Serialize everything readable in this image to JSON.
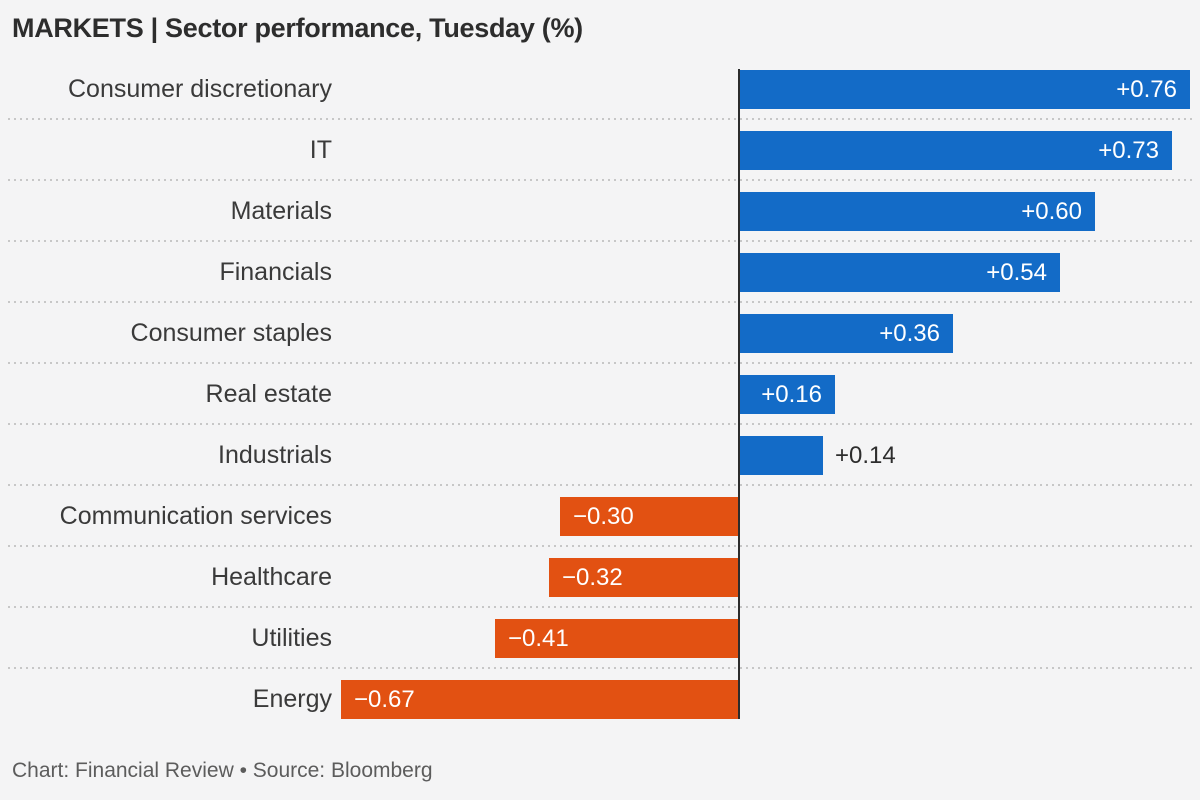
{
  "chart_data": {
    "type": "bar",
    "orientation": "horizontal",
    "title": "MARKETS | Sector performance, Tuesday (%)",
    "source_note": "Chart: Financial Review • Source: Bloomberg",
    "categories": [
      "Consumer discretionary",
      "IT",
      "Materials",
      "Financials",
      "Consumer staples",
      "Real estate",
      "Industrials",
      "Communication services",
      "Healthcare",
      "Utilities",
      "Energy"
    ],
    "values": [
      0.76,
      0.73,
      0.6,
      0.54,
      0.36,
      0.16,
      0.14,
      -0.3,
      -0.32,
      -0.41,
      -0.67
    ],
    "display_values": [
      "+0.76",
      "+0.73",
      "+0.60",
      "+0.54",
      "+0.36",
      "+0.16",
      "+0.14",
      "−0.30",
      "−0.32",
      "−0.41",
      "−0.67"
    ],
    "value_label_positions": [
      "inside",
      "inside",
      "inside",
      "inside",
      "inside",
      "inside",
      "outside",
      "inside",
      "inside",
      "inside",
      "inside"
    ],
    "xlabel": "",
    "ylabel": "",
    "xlim": [
      -0.7,
      0.78
    ],
    "baseline": 0,
    "grid": "dotted-row-separators",
    "legend": "none",
    "colors": {
      "positive_bar": "#136bc7",
      "negative_bar": "#e25112",
      "value_label_inside": "#ffffff",
      "value_label_outside": "#2d2d2d",
      "baseline_line": "#2c2c2c",
      "separator_dots": "#c7c7c7",
      "background": "#f4f4f5",
      "category_text": "#3a3a3a",
      "title_text": "#2d2d2d",
      "footer_text": "#5c5c5c"
    }
  }
}
